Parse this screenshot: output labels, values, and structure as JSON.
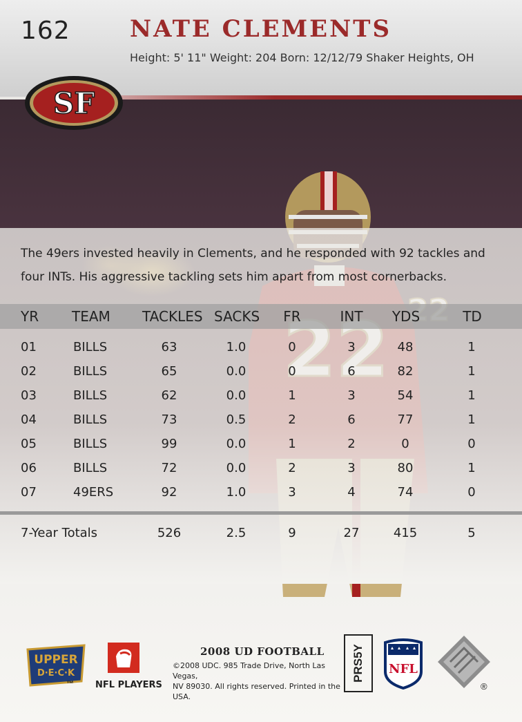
{
  "card": {
    "number": "162",
    "player_name": "NATE CLEMENTS",
    "bio": "Height: 5' 11\" Weight: 204  Born: 12/12/79 Shaker Heights, OH",
    "team_logo_text": "SF",
    "jersey_number": "22",
    "blurb_line1": "The 49ers invested heavily in Clements, and he responded with 92 tackles and",
    "blurb_line2": "four INTs. His aggressive tackling sets him apart from most cornerbacks."
  },
  "stats": {
    "headers": [
      "YR",
      "TEAM",
      "TACKLES",
      "SACKS",
      "FR",
      "INT",
      "YDS",
      "TD"
    ],
    "rows": [
      [
        "01",
        "BILLS",
        "63",
        "1.0",
        "0",
        "3",
        "48",
        "1"
      ],
      [
        "02",
        "BILLS",
        "65",
        "0.0",
        "0",
        "6",
        "82",
        "1"
      ],
      [
        "03",
        "BILLS",
        "62",
        "0.0",
        "1",
        "3",
        "54",
        "1"
      ],
      [
        "04",
        "BILLS",
        "73",
        "0.5",
        "2",
        "6",
        "77",
        "1"
      ],
      [
        "05",
        "BILLS",
        "99",
        "0.0",
        "1",
        "2",
        "0",
        "0"
      ],
      [
        "06",
        "BILLS",
        "72",
        "0.0",
        "2",
        "3",
        "80",
        "1"
      ],
      [
        "07",
        "49ERS",
        "92",
        "1.0",
        "3",
        "4",
        "74",
        "0"
      ]
    ],
    "totals_label": "7-Year Totals",
    "totals": [
      "526",
      "2.5",
      "9",
      "27",
      "415",
      "5"
    ]
  },
  "footer": {
    "upper_deck_line1": "UPPER",
    "upper_deck_line2": "D·E·C·K",
    "tm": "™",
    "nfl_players": "NFL PLAYERS",
    "product": "2008 UD FOOTBALL",
    "copyright_line1": "©2008 UDC. 985 Trade Drive, North Las Vegas,",
    "copyright_line2": "NV 89030. All rights reserved. Printed in the USA.",
    "code": "PRS5Y",
    "nfl_shield_text": "NFL",
    "registered": "®"
  },
  "colors": {
    "name_red": "#9b2a2a",
    "niners_red": "#a5201f",
    "niners_gold": "#b3995d"
  }
}
